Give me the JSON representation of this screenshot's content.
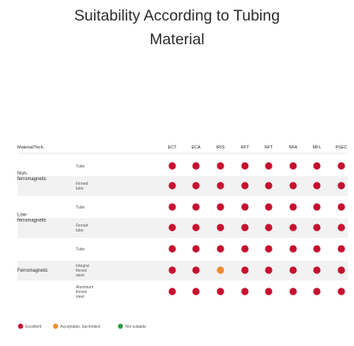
{
  "chart_data": {
    "type": "table",
    "title_line1": "Suitability According to Tubing",
    "title_line2": "Material",
    "corner_header": "Material/Tech.",
    "columns": [
      "ECT",
      "ECA",
      "IRIS",
      "RFT",
      "NFT",
      "NFA",
      "MFL",
      "PSEC"
    ],
    "groups": [
      {
        "name_lines": [
          "Non-",
          "ferromagnetic"
        ],
        "rows": [
          0,
          1
        ]
      },
      {
        "name_lines": [
          "Low-",
          "ferromagnetic"
        ],
        "rows": [
          2,
          3
        ]
      },
      {
        "name_lines": [
          "Ferromagnetic"
        ],
        "rows": [
          4,
          5,
          6
        ]
      }
    ],
    "rows": [
      {
        "label_lines": [
          "Tube"
        ],
        "values": [
          "excellent",
          "excellent",
          "excellent",
          "excellent",
          "excellent",
          "excellent",
          "excellent",
          "excellent"
        ]
      },
      {
        "label_lines": [
          "Finned",
          "tube"
        ],
        "values": [
          "excellent",
          "excellent",
          "excellent",
          "excellent",
          "excellent",
          "excellent",
          "excellent",
          "excellent"
        ]
      },
      {
        "label_lines": [
          "Tube"
        ],
        "values": [
          "excellent",
          "excellent",
          "excellent",
          "excellent",
          "excellent",
          "excellent",
          "excellent",
          "excellent"
        ]
      },
      {
        "label_lines": [
          "Finned",
          "tube"
        ],
        "values": [
          "excellent",
          "excellent",
          "excellent",
          "excellent",
          "excellent",
          "excellent",
          "excellent",
          "excellent"
        ]
      },
      {
        "label_lines": [
          "Tube"
        ],
        "values": [
          "excellent",
          "excellent",
          "excellent",
          "excellent",
          "excellent",
          "excellent",
          "excellent",
          "excellent"
        ]
      },
      {
        "label_lines": [
          "Integral",
          "finned",
          "steel"
        ],
        "values": [
          "excellent",
          "excellent",
          "acceptable",
          "excellent",
          "excellent",
          "excellent",
          "excellent",
          "excellent"
        ]
      },
      {
        "label_lines": [
          "Aluminum",
          "finned",
          "steel"
        ],
        "values": [
          "excellent",
          "excellent",
          "excellent",
          "excellent",
          "excellent",
          "excellent",
          "excellent",
          "excellent"
        ]
      }
    ],
    "legend": [
      {
        "key": "excellent",
        "label": "Excellent"
      },
      {
        "key": "acceptable",
        "label": "Acceptable, but limited"
      },
      {
        "key": "not_suitable",
        "label": "Not suitable"
      }
    ],
    "colors": {
      "excellent": "#c8102e",
      "acceptable": "#f08a2c",
      "not_suitable": "#2f9e41",
      "row_shade": "#f2f2f2",
      "text": "#2b2b2b"
    }
  }
}
